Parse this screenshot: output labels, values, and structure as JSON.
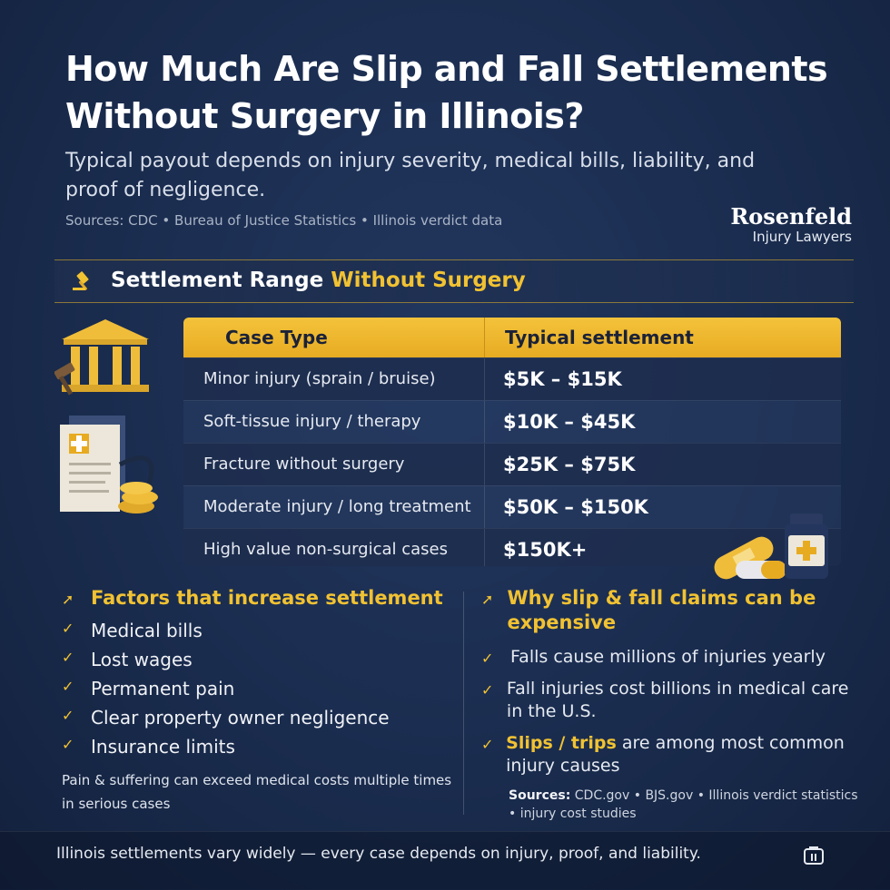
{
  "header": {
    "title": "How Much Are Slip and Fall Settlements Without Surgery in Illinois?",
    "subtitle": "Typical payout depends on injury severity, medical bills, liability, and proof of negligence.",
    "sources": "Sources: CDC • Bureau of Justice Statistics • Illinois verdict data"
  },
  "logo": {
    "name": "Rosenfeld",
    "sub": "Injury Lawyers"
  },
  "section": {
    "title_white": "Settlement Range ",
    "title_yellow": "Without Surgery"
  },
  "table": {
    "headers": [
      "Case Type",
      "Typical settlement"
    ],
    "rows": [
      [
        "Minor injury (sprain / bruise)",
        "$5K – $15K"
      ],
      [
        "Soft-tissue injury / therapy",
        "$10K – $45K"
      ],
      [
        "Fracture without surgery",
        "$25K – $75K"
      ],
      [
        "Moderate injury / long treatment",
        "$50K – $150K"
      ],
      [
        "High value non-surgical cases",
        "$150K+"
      ]
    ]
  },
  "factors": {
    "title": "Factors that increase settlement",
    "items": [
      "Medical bills",
      "Lost wages",
      "Permanent pain",
      "Clear property owner negligence",
      "Insurance limits"
    ],
    "note": "Pain & suffering can exceed medical costs multiple times in serious cases"
  },
  "why": {
    "title": "Why slip & fall claims can be expensive",
    "items": [
      {
        "bold": "",
        "text": "Falls cause millions of injuries yearly"
      },
      {
        "bold": "",
        "text": "Fall injuries cost billions in medical care in the U.S."
      },
      {
        "bold": "Slips / trips",
        "text": " are among most common injury causes"
      }
    ],
    "sources_label": "Sources:",
    "sources_text": " CDC.gov • BJS.gov • Illinois verdict statistics • injury cost studies"
  },
  "footer": {
    "text": "Illinois settlements vary widely — every case depends on injury, proof, and liability."
  },
  "colors": {
    "accent": "#f1c232",
    "background": "#1a2c4e"
  },
  "icons": [
    "gavel-icon",
    "courthouse-icon",
    "medical-document-icon",
    "stethoscope-icon",
    "coins-icon",
    "bandage-icon",
    "medicine-bottle-icon",
    "trend-arrow-icon",
    "check-icon",
    "camera-icon"
  ]
}
